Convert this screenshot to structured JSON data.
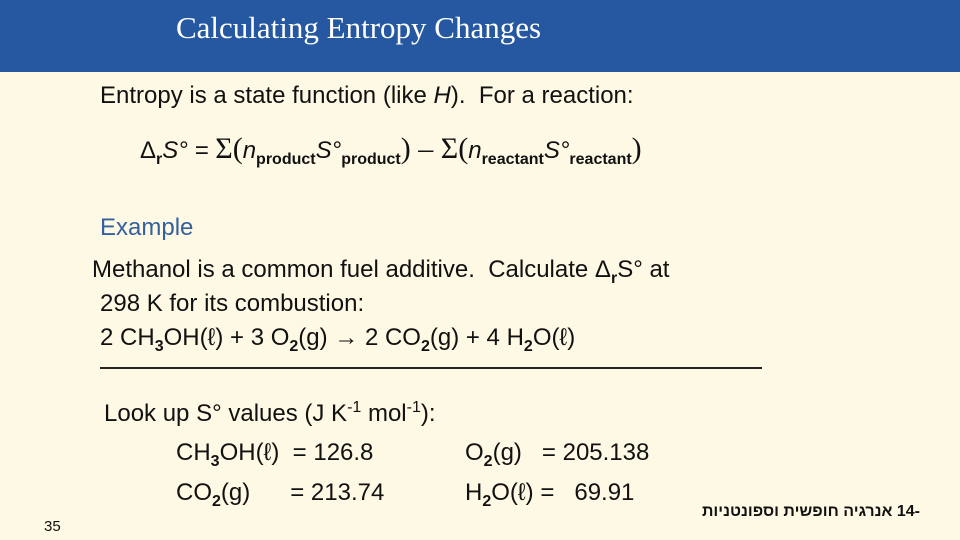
{
  "header": {
    "title": "Calculating Entropy Changes"
  },
  "intro": [
    "Entropy is a state function (like ",
    "H",
    ").  For a reaction:"
  ],
  "equation": [
    "Δ",
    "r",
    "S° = ",
    "Σ(",
    "n",
    "product",
    "S°",
    "product",
    ")",
    " – Σ(",
    "n",
    "reactant",
    "S°",
    "reactant",
    ")"
  ],
  "example": {
    "heading": "Example",
    "problem": [
      [
        "Methanol is a common fuel additive.  Calculate Δ",
        "r",
        "S° at"
      ],
      [
        "298 K for its combustion:"
      ],
      [
        "2 CH",
        "3",
        "OH(ℓ) + 3 O",
        "2",
        "(g) → 2 CO",
        "2",
        "(g) + 4 H",
        "2",
        "O(ℓ)"
      ]
    ]
  },
  "lookup": {
    "heading": [
      "Look up S° values (J K",
      "-1",
      " mol",
      "-1",
      "):"
    ],
    "values": [
      [
        [
          "CH",
          "3",
          "OH(ℓ)  = 126.8"
        ],
        [
          "O",
          "2",
          "(g)   = 205.138"
        ]
      ],
      [
        [
          "CO",
          "2",
          "(g)      = 213.74"
        ],
        [
          "H",
          "2",
          "O(ℓ) =   69.91"
        ]
      ]
    ]
  },
  "page_number": "35",
  "footer": "-14 אנרגיה חופשית וספונטניות"
}
